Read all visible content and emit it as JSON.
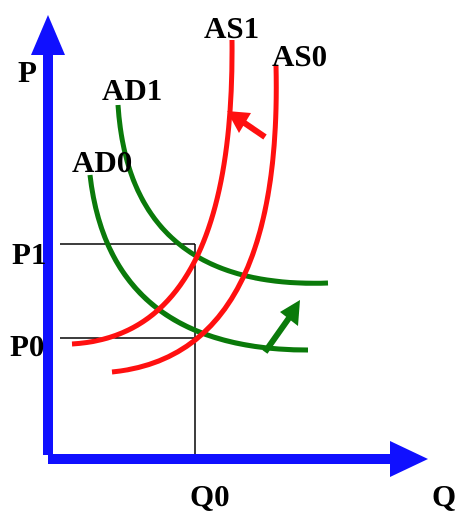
{
  "labels": {
    "y_axis": "P",
    "x_axis": "Q",
    "p1": "P1",
    "p0": "P0",
    "q0": "Q0",
    "as1": "AS1",
    "as0": "AS0",
    "ad1": "AD1",
    "ad0": "AD0"
  },
  "colors": {
    "axes": "#1010ff",
    "supply": "#ff1010",
    "demand": "#0a7a0a",
    "guides": "#000000",
    "text": "#000000"
  },
  "shifts": {
    "supply": "left",
    "demand": "right"
  }
}
